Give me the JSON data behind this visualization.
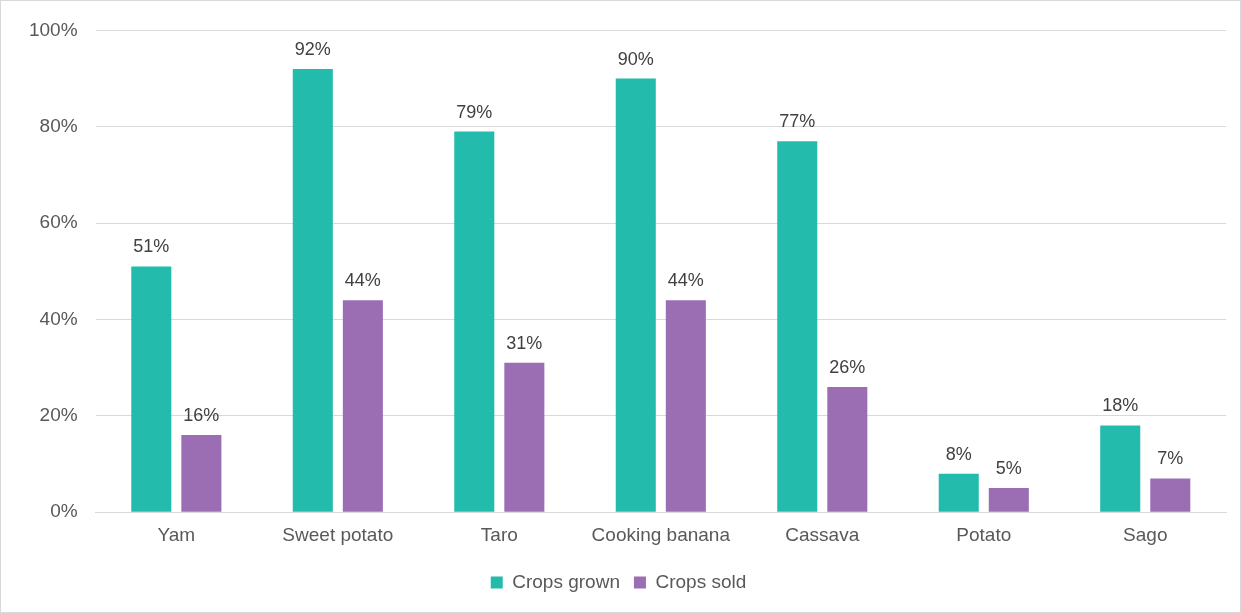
{
  "chart_data": {
    "type": "bar",
    "categories": [
      "Yam",
      "Sweet potato",
      "Taro",
      "Cooking banana",
      "Cassava",
      "Potato",
      "Sago"
    ],
    "series": [
      {
        "name": "Crops grown",
        "color": "#23bbab",
        "values": [
          51,
          92,
          79,
          90,
          77,
          8,
          18
        ],
        "value_labels": [
          "51%",
          "92%",
          "79%",
          "90%",
          "77%",
          "8%",
          "18%"
        ]
      },
      {
        "name": "Crops sold",
        "color": "#9b6db3",
        "values": [
          16,
          44,
          31,
          44,
          26,
          5,
          7
        ],
        "value_labels": [
          "16%",
          "44%",
          "31%",
          "44%",
          "26%",
          "5%",
          "7%"
        ]
      }
    ],
    "ylim": [
      0,
      100
    ],
    "yticks": [
      {
        "value": 0,
        "label": "0%"
      },
      {
        "value": 20,
        "label": "20%"
      },
      {
        "value": 40,
        "label": "40%"
      },
      {
        "value": 60,
        "label": "60%"
      },
      {
        "value": 80,
        "label": "80%"
      },
      {
        "value": 100,
        "label": "100%"
      }
    ],
    "grid": "y",
    "legend": "bottom"
  }
}
